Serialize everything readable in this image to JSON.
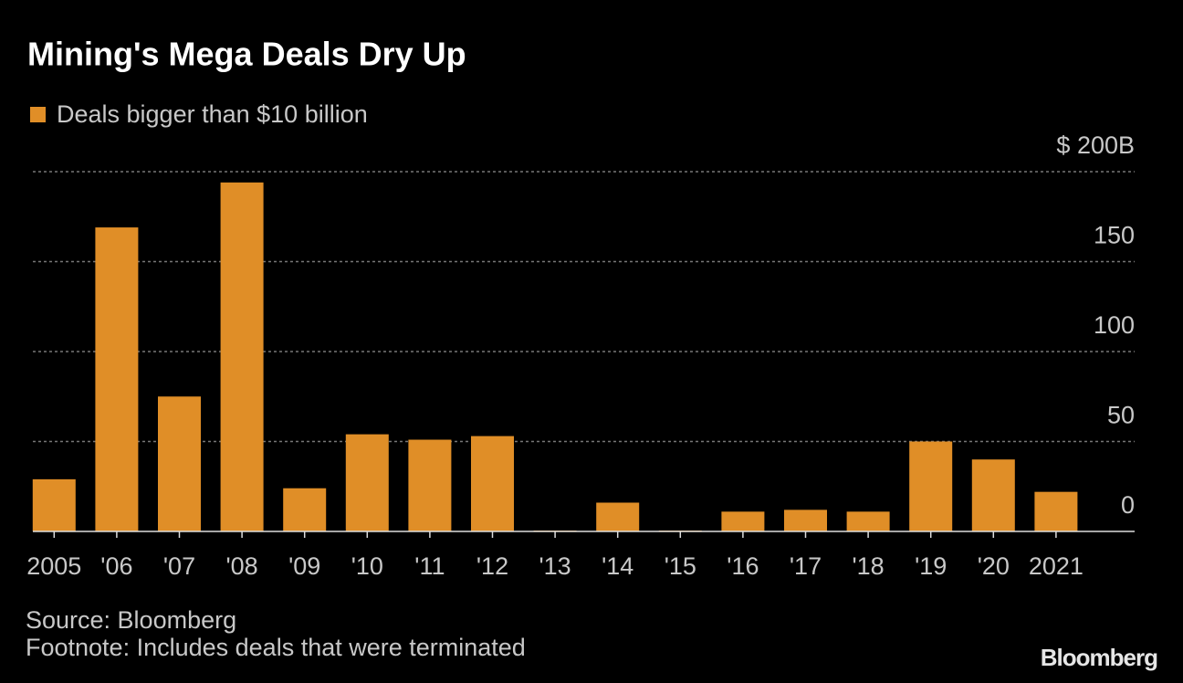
{
  "chart_data": {
    "type": "bar",
    "title": "Mining's Mega Deals Dry Up",
    "categories": [
      "2005",
      "'06",
      "'07",
      "'08",
      "'09",
      "'10",
      "'11",
      "'12",
      "'13",
      "'14",
      "'15",
      "'16",
      "'17",
      "'18",
      "'19",
      "'20",
      "2021"
    ],
    "series": [
      {
        "name": "Deals bigger than $10 billion",
        "color": "#e08e27",
        "values": [
          29,
          169,
          75,
          194,
          24,
          54,
          51,
          53,
          0.5,
          16,
          0.5,
          11,
          12,
          11,
          50,
          40,
          22
        ]
      }
    ],
    "ylim": [
      0,
      200
    ],
    "yticks": [
      0,
      50,
      100,
      150,
      {
        "value": 200,
        "label": "$ 200B"
      }
    ],
    "grid": true,
    "source": "Source: Bloomberg",
    "footnote": "Footnote: Includes deals that were terminated",
    "branding": "Bloomberg"
  }
}
